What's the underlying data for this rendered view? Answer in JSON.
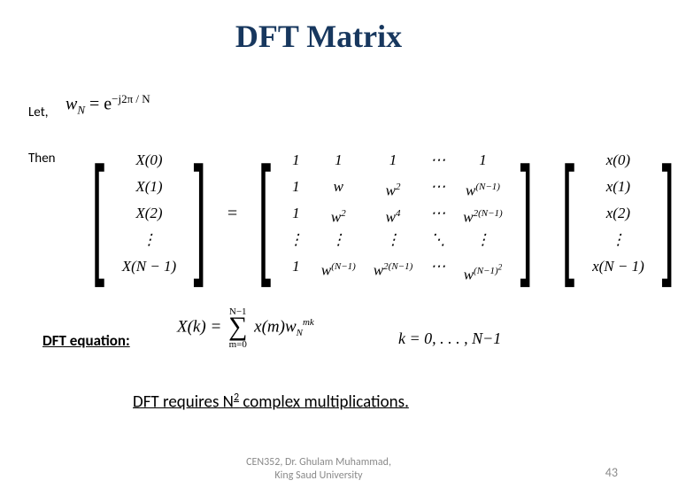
{
  "title": "DFT Matrix",
  "labels": {
    "let": "Let,",
    "then": "Then",
    "dft_eq": "DFT equation:"
  },
  "w_def": {
    "lhs": "w",
    "lhs_sub": "N",
    "eq": " = e",
    "exp": "−j2π / N"
  },
  "lhs_vec": [
    "X(0)",
    "X(1)",
    "X(2)",
    "⋮",
    "X(N − 1)"
  ],
  "rhs_vec": [
    "x(0)",
    "x(1)",
    "x(2)",
    "⋮",
    "x(N − 1)"
  ],
  "matrix": [
    [
      "1",
      "1",
      "1",
      "⋯",
      "1"
    ],
    [
      "1",
      "w",
      "w<sup class='sup'>2</sup>",
      "⋯",
      "w<sup class='sup'>(N−1)</sup>"
    ],
    [
      "1",
      "w<sup class='sup'>2</sup>",
      "w<sup class='sup'>4</sup>",
      "⋯",
      "w<sup class='sup'>2(N−1)</sup>"
    ],
    [
      "⋮",
      "⋮",
      "⋮",
      "⋱",
      "⋮"
    ],
    [
      "1",
      "w<sup class='sup'>(N−1)</sup>",
      "w<sup class='sup'>2(N−1)</sup>",
      "⋯",
      "w<sup class='sup'>(N−1)<sup>2</sup></sup>"
    ]
  ],
  "dft_formula": {
    "lhs": "X(k) = ",
    "sum_top": "N−1",
    "sum_bot": "m=0",
    "body": "x(m)w",
    "body_sub": "N",
    "body_sup": "mk"
  },
  "k_range": "k = 0, . . . , N−1",
  "statement_pre": "DFT requires N",
  "statement_sup": "2",
  "statement_post": " complex multiplications.",
  "footer_line1": "CEN352, Dr. Ghulam Muhammad,",
  "footer_line2": "King Saud University",
  "page_number": "43"
}
